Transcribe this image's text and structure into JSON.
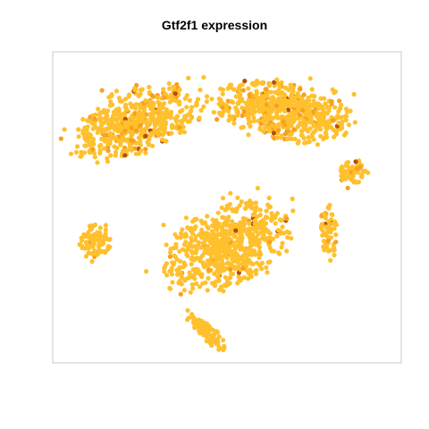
{
  "chart_data": {
    "type": "scatter",
    "title": "Gtf2f1 expression",
    "xlabel": "",
    "ylabel": "",
    "axes_visible": false,
    "frame": true,
    "grid": false,
    "legend": "none",
    "color_scale": {
      "low": "#ffc02e",
      "mid": "#f7a021",
      "high": "#b34f0c"
    },
    "clusters": [
      {
        "cx": -26,
        "cy": 22,
        "rx": 16,
        "ry": 7,
        "angle": 18,
        "n": 560,
        "high_frac": 0.14
      },
      {
        "cx": 16,
        "cy": 25,
        "rx": 18,
        "ry": 6.5,
        "angle": -8,
        "n": 650,
        "high_frac": 0.16
      },
      {
        "cx": 36,
        "cy": 9,
        "rx": 3.5,
        "ry": 3,
        "angle": 0,
        "n": 70,
        "high_frac": 0.22
      },
      {
        "cx": 29,
        "cy": -6,
        "rx": 2.5,
        "ry": 6,
        "angle": 10,
        "n": 55,
        "high_frac": 0.08
      },
      {
        "cx": -38,
        "cy": -9,
        "rx": 4,
        "ry": 4,
        "angle": 0,
        "n": 90,
        "high_frac": 0.03
      },
      {
        "cx": 0,
        "cy": -10,
        "rx": 17,
        "ry": 9,
        "angle": 20,
        "n": 700,
        "high_frac": 0.05
      },
      {
        "cx": -6,
        "cy": -32,
        "rx": 6,
        "ry": 2,
        "angle": -40,
        "n": 85,
        "high_frac": 0.03
      }
    ],
    "xlim": [
      -50,
      50
    ],
    "ylim": [
      -40,
      40
    ]
  }
}
